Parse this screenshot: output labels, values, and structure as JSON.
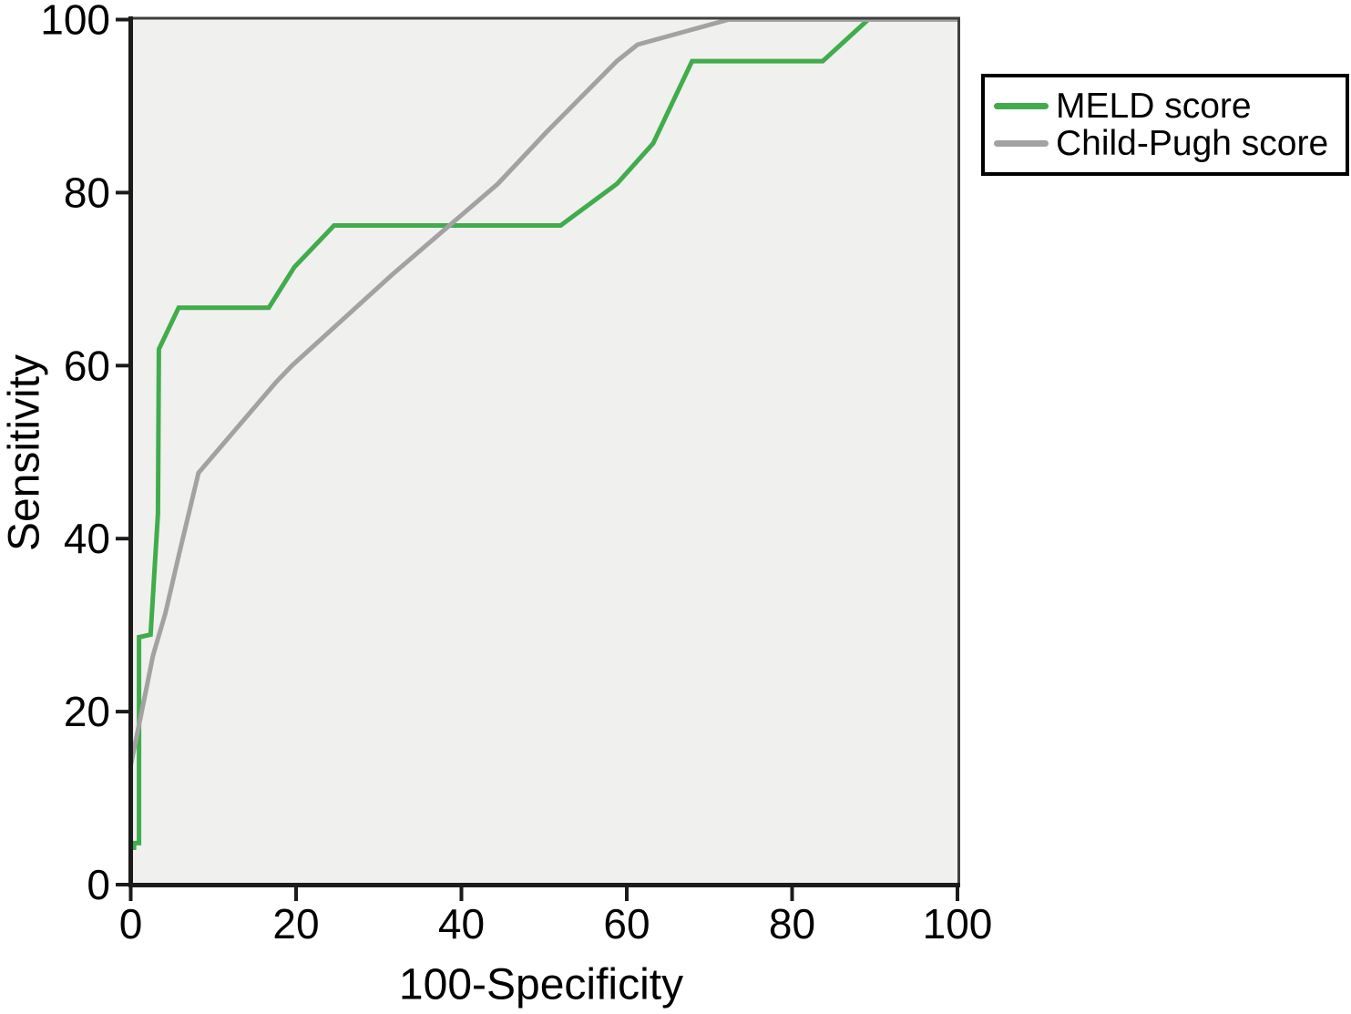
{
  "chart_data": {
    "type": "line",
    "subtype": "roc-curves",
    "title": "",
    "xlabel": "100-Specificity",
    "ylabel": "Sensitivity",
    "xlim": [
      0,
      100
    ],
    "ylim": [
      0,
      100
    ],
    "x_ticks": [
      0,
      20,
      40,
      60,
      80,
      100
    ],
    "y_ticks": [
      0,
      20,
      40,
      60,
      80,
      100
    ],
    "grid": false,
    "plot_background": "#f0f0ef",
    "axis_color": "#1b1b1b",
    "frame_color": "#3f3f3f",
    "tick_label_color": "#000000",
    "legend_position": "outside-top-right",
    "legend_border_color": "#000000",
    "legend_background": "#ffffff",
    "series": [
      {
        "name": "MELD score",
        "color": "#41ac4b",
        "points": [
          [
            0.4,
            4.0
          ],
          [
            0.4,
            4.8
          ],
          [
            1.0,
            4.8
          ],
          [
            1.0,
            28.6
          ],
          [
            2.4,
            28.9
          ],
          [
            3.3,
            42.9
          ],
          [
            3.4,
            61.9
          ],
          [
            5.8,
            66.7
          ],
          [
            16.7,
            66.7
          ],
          [
            19.8,
            71.4
          ],
          [
            24.6,
            76.2
          ],
          [
            52.0,
            76.2
          ],
          [
            58.8,
            81.0
          ],
          [
            63.2,
            85.7
          ],
          [
            67.9,
            95.2
          ],
          [
            83.7,
            95.2
          ],
          [
            89.2,
            100
          ],
          [
            100,
            100
          ]
        ]
      },
      {
        "name": "Child-Pugh score",
        "color": "#a2a2a2",
        "points": [
          [
            0,
            13.8
          ],
          [
            1.2,
            19.4
          ],
          [
            2.7,
            26.5
          ],
          [
            4.2,
            31.4
          ],
          [
            5.9,
            38.4
          ],
          [
            8.2,
            47.6
          ],
          [
            17.6,
            58.1
          ],
          [
            19.5,
            60.0
          ],
          [
            31.6,
            70.5
          ],
          [
            44.4,
            81.0
          ],
          [
            50.3,
            87.0
          ],
          [
            58.8,
            95.2
          ],
          [
            61.3,
            97.1
          ],
          [
            72.3,
            100
          ],
          [
            100,
            100
          ]
        ]
      }
    ]
  }
}
